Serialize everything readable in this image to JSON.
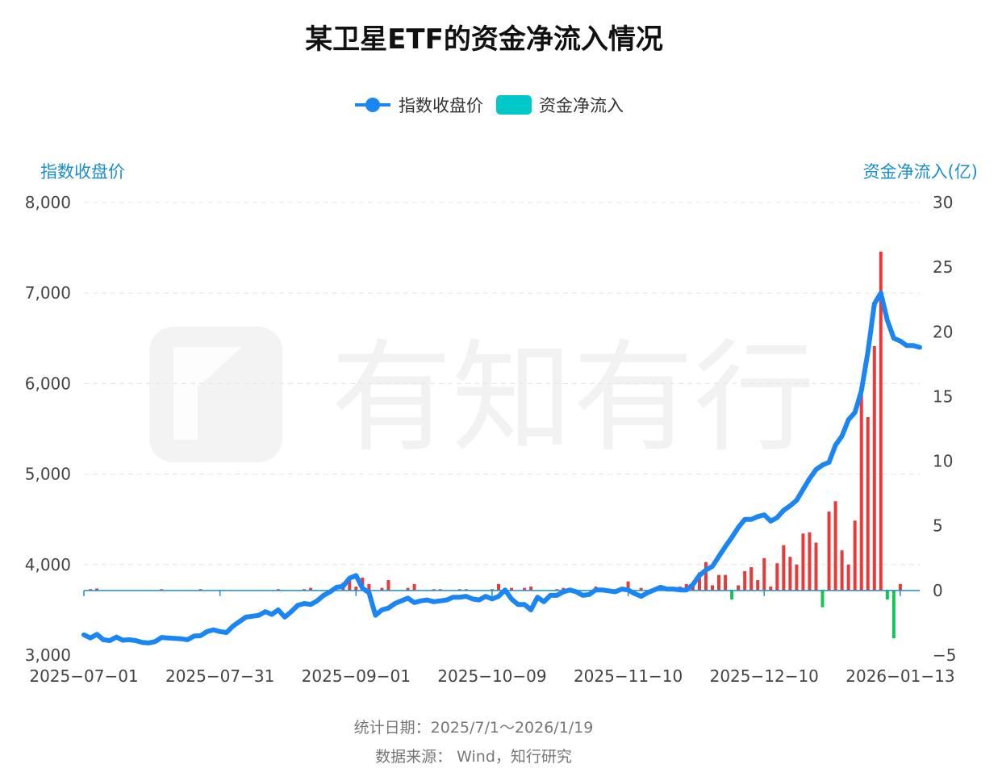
{
  "footer": {
    "stat_date": "统计日期：2025/7/1～2026/1/19",
    "source": "数据来源：  Wind，知行研究"
  },
  "watermark": "有知有行",
  "chart_data": {
    "type": "bar+line",
    "title": "某卫星ETF的资金净流入情况",
    "legend": {
      "placement": "top-center",
      "entries": [
        {
          "name": "指数收盘价",
          "type": "line",
          "color": "#1A86F5"
        },
        {
          "name": "资金净流入",
          "type": "bar",
          "color": "#00C8C8"
        }
      ]
    },
    "y_left": {
      "label": "指数收盘价",
      "min": 3000,
      "max": 8000,
      "ticks": [
        "3,000",
        "4,000",
        "5,000",
        "6,000",
        "7,000",
        "8,000"
      ],
      "tick_values": [
        3000,
        4000,
        5000,
        6000,
        7000,
        8000
      ]
    },
    "y_right": {
      "label": "资金净流入(亿)",
      "min": -5,
      "max": 30,
      "ticks": [
        "−5",
        "0",
        "5",
        "10",
        "15",
        "20",
        "25",
        "30"
      ],
      "tick_values": [
        -5,
        0,
        5,
        10,
        15,
        20,
        25,
        30
      ]
    },
    "x_ticks": [
      {
        "label": "2025−07−01",
        "index": 0
      },
      {
        "label": "2025−07−31",
        "index": 21
      },
      {
        "label": "2025−09−01",
        "index": 42
      },
      {
        "label": "2025−10−09",
        "index": 63
      },
      {
        "label": "2025−11−10",
        "index": 84
      },
      {
        "label": "2025−12−10",
        "index": 105
      },
      {
        "label": "2026−01−13",
        "index": 126
      }
    ],
    "colors": {
      "line": "#1A86F5",
      "bar_positive": "#E83A3A",
      "bar_negative": "#16C45A",
      "zero_axis": "#1B8FC9",
      "grid": "#E4E4E4"
    },
    "grid": true,
    "index_close": [
      3225,
      3190,
      3230,
      3170,
      3160,
      3200,
      3165,
      3170,
      3160,
      3140,
      3135,
      3150,
      3195,
      3190,
      3185,
      3180,
      3170,
      3210,
      3215,
      3260,
      3280,
      3260,
      3250,
      3320,
      3370,
      3420,
      3430,
      3440,
      3480,
      3450,
      3500,
      3420,
      3480,
      3550,
      3570,
      3560,
      3600,
      3660,
      3700,
      3750,
      3760,
      3850,
      3880,
      3740,
      3690,
      3440,
      3500,
      3520,
      3570,
      3600,
      3630,
      3580,
      3600,
      3610,
      3590,
      3600,
      3610,
      3640,
      3640,
      3650,
      3620,
      3610,
      3650,
      3620,
      3650,
      3720,
      3620,
      3560,
      3560,
      3500,
      3640,
      3590,
      3660,
      3660,
      3700,
      3720,
      3700,
      3660,
      3670,
      3720,
      3720,
      3710,
      3700,
      3730,
      3720,
      3680,
      3650,
      3690,
      3720,
      3750,
      3730,
      3730,
      3720,
      3720,
      3780,
      3880,
      3940,
      3980,
      4090,
      4200,
      4300,
      4410,
      4500,
      4500,
      4530,
      4550,
      4480,
      4520,
      4600,
      4650,
      4710,
      4830,
      4950,
      5050,
      5100,
      5130,
      5320,
      5420,
      5600,
      5680,
      5920,
      6350,
      6880,
      7000,
      6700,
      6500,
      6470,
      6420,
      6420,
      6400
    ],
    "net_inflow": [
      0,
      0.1,
      0.15,
      0,
      0,
      0,
      0,
      0,
      0,
      0,
      0,
      0,
      0.1,
      0,
      0,
      0,
      0,
      0,
      0.1,
      0,
      0,
      0,
      0,
      0,
      0,
      0,
      0,
      0,
      0,
      0,
      0.1,
      0,
      0,
      0,
      0.1,
      0.2,
      0,
      0,
      0,
      0,
      0.6,
      0.8,
      0.3,
      1.0,
      0.5,
      0,
      0.2,
      0.8,
      0,
      0,
      0.2,
      0.5,
      0,
      0,
      0.1,
      0.1,
      0,
      0,
      0.1,
      0.1,
      0,
      0,
      0,
      0.1,
      0.5,
      0,
      0.2,
      0,
      0.2,
      0.3,
      0,
      0,
      0,
      0.1,
      0.2,
      0,
      0,
      0,
      0,
      0.3,
      0,
      0,
      0.1,
      0,
      0.7,
      0,
      0.2,
      0,
      0,
      0.3,
      0.1,
      0,
      0.3,
      0.5,
      0.5,
      1.4,
      2.2,
      0.4,
      1.2,
      1.2,
      -0.7,
      0.4,
      1.5,
      1.8,
      0.8,
      2.5,
      0.3,
      2.1,
      3.5,
      2.6,
      2.0,
      4.4,
      4.5,
      3.7,
      -1.3,
      6.1,
      6.9,
      3.1,
      2.0,
      5.4,
      15.8,
      13.4,
      18.9,
      26.2,
      -0.7,
      -3.7,
      0.5,
      0,
      0,
      0
    ]
  }
}
